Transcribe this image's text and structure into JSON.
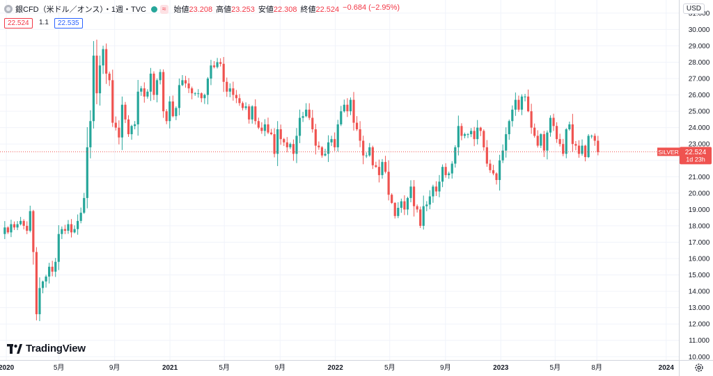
{
  "header": {
    "symbol_title": "銀CFD（米ドル／オンス）・1週・TVC",
    "approx_badge": "≈",
    "ohlc": [
      {
        "label": "始値",
        "value": "23.208"
      },
      {
        "label": "高値",
        "value": "23.253"
      },
      {
        "label": "安値",
        "value": "22.308"
      },
      {
        "label": "終値",
        "value": "22.524"
      },
      {
        "label": "",
        "value": "−0.684 (−2.95%)"
      }
    ]
  },
  "quote": {
    "sell": "22.524",
    "spread": "1.1",
    "buy": "22.535"
  },
  "currency": "USD",
  "logo_text": "TradingView",
  "price_label": {
    "name": "SILVER",
    "value": "22.524",
    "countdown": "1d 23h"
  },
  "colors": {
    "up": "#26a69a",
    "down": "#ef5350",
    "grid": "#f0f3fa",
    "axis_text": "#131722"
  },
  "chart_data": {
    "type": "candlestick",
    "interval": "1 week",
    "xlim": [
      "2019-12-23",
      "2024-01-29"
    ],
    "ylim": [
      9.8,
      31.8
    ],
    "y_ticks": [
      10,
      11,
      12,
      13,
      14,
      15,
      16,
      17,
      18,
      19,
      20,
      21,
      22,
      23,
      24,
      25,
      26,
      27,
      28,
      29,
      30,
      31
    ],
    "x_ticks": [
      {
        "date": "2020-01-06",
        "label": "2020"
      },
      {
        "date": "2020-05-01",
        "label": "5月"
      },
      {
        "date": "2020-09-01",
        "label": "9月"
      },
      {
        "date": "2021-01-01",
        "label": "2021"
      },
      {
        "date": "2021-05-01",
        "label": "5月"
      },
      {
        "date": "2021-09-01",
        "label": "9月"
      },
      {
        "date": "2022-01-01",
        "label": "2022"
      },
      {
        "date": "2022-05-01",
        "label": "5月"
      },
      {
        "date": "2022-09-01",
        "label": "9月"
      },
      {
        "date": "2023-01-01",
        "label": "2023"
      },
      {
        "date": "2023-05-01",
        "label": "5月"
      },
      {
        "date": "2023-08-01",
        "label": "8月"
      },
      {
        "date": "2024-01-01",
        "label": "2024"
      }
    ],
    "first_week": "2019-12-30",
    "closes": [
      17.9,
      17.6,
      18.1,
      17.9,
      18.1,
      18.3,
      18.0,
      17.7,
      18.9,
      16.4,
      12.6,
      14.2,
      14.6,
      14.9,
      15.5,
      15.2,
      15.8,
      17.5,
      17.8,
      17.7,
      18.1,
      17.6,
      17.8,
      18.3,
      18.8,
      19.7,
      22.8,
      24.4,
      28.4,
      26.1,
      27.8,
      28.8,
      27.3,
      26.9,
      24.3,
      24.0,
      23.4,
      25.4,
      24.5,
      23.6,
      24.1,
      24.2,
      26.2,
      26.4,
      25.9,
      26.2,
      27.3,
      26.0,
      26.9,
      27.4,
      25.0,
      24.4,
      25.6,
      24.7,
      25.2,
      26.6,
      26.9,
      26.7,
      26.4,
      26.1,
      26.1,
      26.1,
      25.8,
      26.0,
      27.0,
      27.8,
      27.7,
      28.0,
      27.9,
      26.8,
      26.2,
      26.4,
      26.0,
      25.8,
      25.5,
      25.2,
      25.3,
      24.5,
      25.3,
      24.4,
      24.0,
      23.8,
      24.2,
      23.7,
      23.6,
      22.4,
      23.9,
      23.3,
      23.1,
      22.8,
      23.0,
      22.4,
      23.5,
      24.6,
      24.7,
      25.1,
      24.6,
      23.9,
      22.9,
      22.8,
      22.3,
      22.4,
      23.1,
      23.3,
      22.8,
      24.2,
      25.0,
      25.4,
      25.0,
      25.7,
      24.3,
      23.9,
      23.2,
      22.3,
      22.3,
      22.8,
      21.7,
      21.6,
      21.1,
      21.9,
      21.3,
      19.9,
      19.4,
      18.6,
      19.1,
      19.5,
      19.0,
      19.7,
      20.4,
      19.2,
      19.0,
      18.0,
      19.2,
      19.3,
      19.8,
      20.4,
      20.1,
      20.7,
      21.6,
      21.1,
      21.2,
      21.8,
      22.8,
      24.1,
      23.5,
      23.6,
      23.6,
      23.8,
      23.3,
      24.0,
      23.8,
      22.8,
      21.8,
      21.4,
      21.2,
      20.8,
      22.0,
      22.6,
      23.6,
      24.4,
      25.1,
      25.7,
      25.1,
      25.9,
      25.9,
      25.0,
      24.0,
      23.5,
      22.9,
      23.6,
      22.6,
      23.7,
      24.6,
      24.1,
      23.3,
      23.0,
      22.4,
      23.9,
      24.2,
      23.0,
      22.9,
      22.4,
      22.9,
      22.2,
      23.5,
      23.5,
      23.2,
      22.5
    ]
  }
}
